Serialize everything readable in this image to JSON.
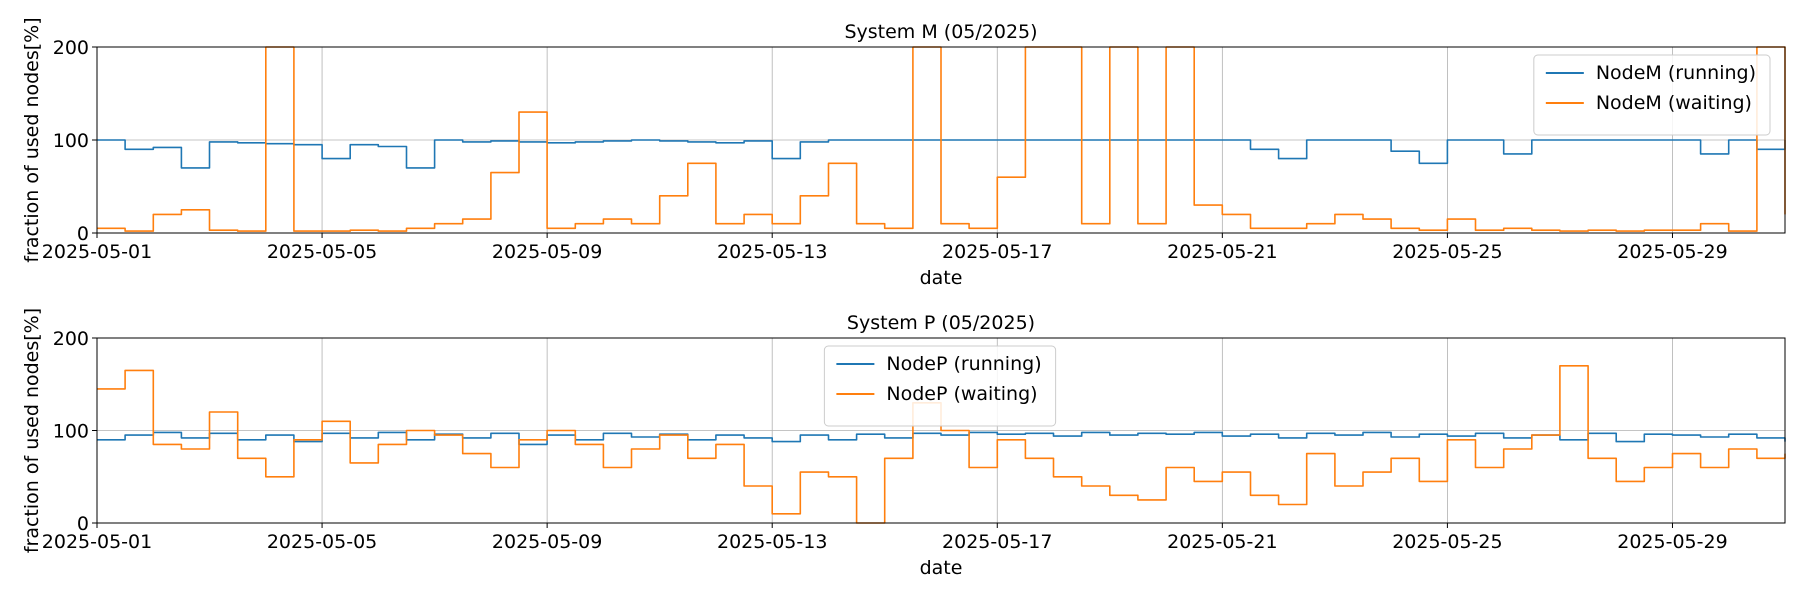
{
  "colors": {
    "running": "#1f77b4",
    "waiting": "#ff7f0e"
  },
  "chart_data": [
    {
      "type": "line",
      "title": "System M (05/2025)",
      "xlabel": "date",
      "ylabel": "fraction of used nodes[%]",
      "xlim": [
        "2025-05-01",
        "2025-05-31"
      ],
      "ylim": [
        0,
        200
      ],
      "yticks": [
        "0",
        "100",
        "200"
      ],
      "xticks": [
        "2025-05-01",
        "2025-05-05",
        "2025-05-09",
        "2025-05-13",
        "2025-05-17",
        "2025-05-21",
        "2025-05-25",
        "2025-05-29"
      ],
      "grid": true,
      "legend_position": "upper-right",
      "series": [
        {
          "name": "NodeM (running)",
          "color": "#1f77b4",
          "x": [
            "2025-05-01",
            "2025-05-01T12:00",
            "2025-05-02",
            "2025-05-02T12:00",
            "2025-05-03",
            "2025-05-03T12:00",
            "2025-05-04",
            "2025-05-04T12:00",
            "2025-05-05",
            "2025-05-05T12:00",
            "2025-05-06",
            "2025-05-06T12:00",
            "2025-05-07",
            "2025-05-07T12:00",
            "2025-05-08",
            "2025-05-08T12:00",
            "2025-05-09",
            "2025-05-09T12:00",
            "2025-05-10",
            "2025-05-10T12:00",
            "2025-05-11",
            "2025-05-11T12:00",
            "2025-05-12",
            "2025-05-12T12:00",
            "2025-05-13",
            "2025-05-13T12:00",
            "2025-05-14",
            "2025-05-14T12:00",
            "2025-05-15",
            "2025-05-15T12:00",
            "2025-05-16",
            "2025-05-16T12:00",
            "2025-05-17",
            "2025-05-17T12:00",
            "2025-05-18",
            "2025-05-18T12:00",
            "2025-05-19",
            "2025-05-19T12:00",
            "2025-05-20",
            "2025-05-20T12:00",
            "2025-05-21",
            "2025-05-21T12:00",
            "2025-05-22",
            "2025-05-22T12:00",
            "2025-05-23",
            "2025-05-23T12:00",
            "2025-05-24",
            "2025-05-24T12:00",
            "2025-05-25",
            "2025-05-25T12:00",
            "2025-05-26",
            "2025-05-26T12:00",
            "2025-05-27",
            "2025-05-27T12:00",
            "2025-05-28",
            "2025-05-28T12:00",
            "2025-05-29",
            "2025-05-29T12:00",
            "2025-05-30",
            "2025-05-30T12:00",
            "2025-05-31"
          ],
          "values": [
            100,
            90,
            92,
            70,
            98,
            97,
            96,
            95,
            80,
            95,
            93,
            70,
            100,
            98,
            99,
            98,
            97,
            98,
            99,
            100,
            99,
            98,
            97,
            99,
            80,
            98,
            100,
            100,
            100,
            100,
            100,
            100,
            100,
            100,
            100,
            100,
            100,
            100,
            100,
            100,
            100,
            90,
            80,
            100,
            100,
            100,
            88,
            75,
            100,
            100,
            85,
            100,
            100,
            100,
            100,
            100,
            100,
            85,
            100,
            90,
            100
          ]
        },
        {
          "name": "NodeM (waiting)",
          "color": "#ff7f0e",
          "x": [
            "2025-05-01",
            "2025-05-01T12:00",
            "2025-05-02",
            "2025-05-02T12:00",
            "2025-05-03",
            "2025-05-03T12:00",
            "2025-05-04",
            "2025-05-04T12:00",
            "2025-05-05",
            "2025-05-05T12:00",
            "2025-05-06",
            "2025-05-06T12:00",
            "2025-05-07",
            "2025-05-07T12:00",
            "2025-05-08",
            "2025-05-08T12:00",
            "2025-05-09",
            "2025-05-09T12:00",
            "2025-05-10",
            "2025-05-10T12:00",
            "2025-05-11",
            "2025-05-11T12:00",
            "2025-05-12",
            "2025-05-12T12:00",
            "2025-05-13",
            "2025-05-13T12:00",
            "2025-05-14",
            "2025-05-14T12:00",
            "2025-05-15",
            "2025-05-15T12:00",
            "2025-05-16",
            "2025-05-16T12:00",
            "2025-05-17",
            "2025-05-17T12:00",
            "2025-05-18",
            "2025-05-18T12:00",
            "2025-05-19",
            "2025-05-19T12:00",
            "2025-05-20",
            "2025-05-20T12:00",
            "2025-05-21",
            "2025-05-21T12:00",
            "2025-05-22",
            "2025-05-22T12:00",
            "2025-05-23",
            "2025-05-23T12:00",
            "2025-05-24",
            "2025-05-24T12:00",
            "2025-05-25",
            "2025-05-25T12:00",
            "2025-05-26",
            "2025-05-26T12:00",
            "2025-05-27",
            "2025-05-27T12:00",
            "2025-05-28",
            "2025-05-28T12:00",
            "2025-05-29",
            "2025-05-29T12:00",
            "2025-05-30",
            "2025-05-30T12:00",
            "2025-05-31"
          ],
          "values": [
            5,
            2,
            20,
            25,
            3,
            2,
            200,
            2,
            2,
            3,
            2,
            5,
            10,
            15,
            65,
            130,
            5,
            10,
            15,
            10,
            40,
            75,
            10,
            20,
            10,
            40,
            75,
            10,
            5,
            200,
            10,
            5,
            60,
            200,
            200,
            10,
            200,
            10,
            200,
            30,
            20,
            5,
            5,
            10,
            20,
            15,
            5,
            3,
            15,
            3,
            5,
            3,
            2,
            3,
            2,
            3,
            3,
            10,
            2,
            200,
            20
          ]
        }
      ]
    },
    {
      "type": "line",
      "title": "System P (05/2025)",
      "xlabel": "date",
      "ylabel": "fraction of used nodes[%]",
      "xlim": [
        "2025-05-01",
        "2025-05-31"
      ],
      "ylim": [
        0,
        200
      ],
      "yticks": [
        "0",
        "100",
        "200"
      ],
      "xticks": [
        "2025-05-01",
        "2025-05-05",
        "2025-05-09",
        "2025-05-13",
        "2025-05-17",
        "2025-05-21",
        "2025-05-25",
        "2025-05-29"
      ],
      "grid": true,
      "legend_position": "upper-center",
      "series": [
        {
          "name": "NodeP (running)",
          "color": "#1f77b4",
          "x": [
            "2025-05-01",
            "2025-05-01T12:00",
            "2025-05-02",
            "2025-05-02T12:00",
            "2025-05-03",
            "2025-05-03T12:00",
            "2025-05-04",
            "2025-05-04T12:00",
            "2025-05-05",
            "2025-05-05T12:00",
            "2025-05-06",
            "2025-05-06T12:00",
            "2025-05-07",
            "2025-05-07T12:00",
            "2025-05-08",
            "2025-05-08T12:00",
            "2025-05-09",
            "2025-05-09T12:00",
            "2025-05-10",
            "2025-05-10T12:00",
            "2025-05-11",
            "2025-05-11T12:00",
            "2025-05-12",
            "2025-05-12T12:00",
            "2025-05-13",
            "2025-05-13T12:00",
            "2025-05-14",
            "2025-05-14T12:00",
            "2025-05-15",
            "2025-05-15T12:00",
            "2025-05-16",
            "2025-05-16T12:00",
            "2025-05-17",
            "2025-05-17T12:00",
            "2025-05-18",
            "2025-05-18T12:00",
            "2025-05-19",
            "2025-05-19T12:00",
            "2025-05-20",
            "2025-05-20T12:00",
            "2025-05-21",
            "2025-05-21T12:00",
            "2025-05-22",
            "2025-05-22T12:00",
            "2025-05-23",
            "2025-05-23T12:00",
            "2025-05-24",
            "2025-05-24T12:00",
            "2025-05-25",
            "2025-05-25T12:00",
            "2025-05-26",
            "2025-05-26T12:00",
            "2025-05-27",
            "2025-05-27T12:00",
            "2025-05-28",
            "2025-05-28T12:00",
            "2025-05-29",
            "2025-05-29T12:00",
            "2025-05-30",
            "2025-05-30T12:00",
            "2025-05-31"
          ],
          "values": [
            90,
            95,
            98,
            92,
            97,
            90,
            95,
            88,
            97,
            92,
            98,
            90,
            96,
            92,
            97,
            85,
            95,
            90,
            97,
            93,
            96,
            90,
            95,
            92,
            88,
            95,
            90,
            96,
            92,
            97,
            95,
            98,
            96,
            97,
            94,
            98,
            95,
            97,
            96,
            98,
            94,
            96,
            92,
            97,
            95,
            98,
            93,
            96,
            94,
            97,
            92,
            95,
            90,
            97,
            88,
            96,
            95,
            93,
            96,
            92,
            88
          ]
        },
        {
          "name": "NodeP (waiting)",
          "color": "#ff7f0e",
          "x": [
            "2025-05-01",
            "2025-05-01T12:00",
            "2025-05-02",
            "2025-05-02T12:00",
            "2025-05-03",
            "2025-05-03T12:00",
            "2025-05-04",
            "2025-05-04T12:00",
            "2025-05-05",
            "2025-05-05T12:00",
            "2025-05-06",
            "2025-05-06T12:00",
            "2025-05-07",
            "2025-05-07T12:00",
            "2025-05-08",
            "2025-05-08T12:00",
            "2025-05-09",
            "2025-05-09T12:00",
            "2025-05-10",
            "2025-05-10T12:00",
            "2025-05-11",
            "2025-05-11T12:00",
            "2025-05-12",
            "2025-05-12T12:00",
            "2025-05-13",
            "2025-05-13T12:00",
            "2025-05-14",
            "2025-05-14T12:00",
            "2025-05-15",
            "2025-05-15T12:00",
            "2025-05-16",
            "2025-05-16T12:00",
            "2025-05-17",
            "2025-05-17T12:00",
            "2025-05-18",
            "2025-05-18T12:00",
            "2025-05-19",
            "2025-05-19T12:00",
            "2025-05-20",
            "2025-05-20T12:00",
            "2025-05-21",
            "2025-05-21T12:00",
            "2025-05-22",
            "2025-05-22T12:00",
            "2025-05-23",
            "2025-05-23T12:00",
            "2025-05-24",
            "2025-05-24T12:00",
            "2025-05-25",
            "2025-05-25T12:00",
            "2025-05-26",
            "2025-05-26T12:00",
            "2025-05-27",
            "2025-05-27T12:00",
            "2025-05-28",
            "2025-05-28T12:00",
            "2025-05-29",
            "2025-05-29T12:00",
            "2025-05-30",
            "2025-05-30T12:00",
            "2025-05-31"
          ],
          "values": [
            145,
            165,
            85,
            80,
            120,
            70,
            50,
            90,
            110,
            65,
            85,
            100,
            95,
            75,
            60,
            90,
            100,
            85,
            60,
            80,
            95,
            70,
            85,
            40,
            10,
            55,
            50,
            0,
            70,
            130,
            100,
            60,
            90,
            70,
            50,
            40,
            30,
            25,
            60,
            45,
            55,
            30,
            20,
            75,
            40,
            55,
            70,
            45,
            90,
            60,
            80,
            95,
            170,
            70,
            45,
            60,
            75,
            60,
            80,
            70,
            75
          ]
        }
      ]
    }
  ]
}
